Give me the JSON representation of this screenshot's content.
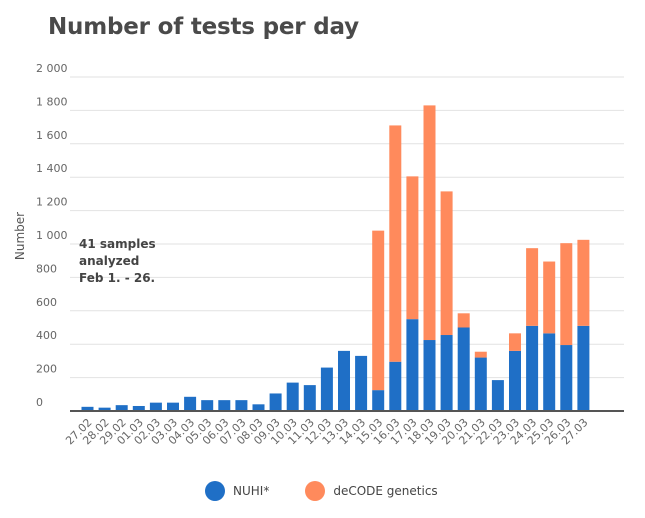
{
  "chart_data": {
    "type": "bar",
    "stacked": true,
    "title": "Number of tests per day",
    "ylabel": "Number",
    "ylim": [
      0,
      2000
    ],
    "yticks": [
      0,
      200,
      400,
      600,
      800,
      1000,
      1200,
      1400,
      1600,
      1800,
      2000
    ],
    "ytick_labels": [
      "0",
      "200",
      "400",
      "600",
      "800",
      "1 000",
      "1 200",
      "1 400",
      "1 600",
      "1 800",
      "2 000"
    ],
    "grid": true,
    "legend_position": "bottom",
    "annotation": [
      "41 samples",
      "analyzed",
      "Feb 1. - 26."
    ],
    "categories": [
      "27.02",
      "28.02",
      "29.02",
      "01.03",
      "02.03",
      "03.03",
      "04.03",
      "05.03",
      "06.03",
      "07.03",
      "08.03",
      "09.03",
      "10.03",
      "11.03",
      "12.03",
      "13.03",
      "14.03",
      "15.03",
      "16.03",
      "17.03",
      "18.03",
      "19.03",
      "20.03",
      "21.03",
      "22.03",
      "23.03",
      "24.03",
      "25.03",
      "26.03",
      "27.03"
    ],
    "series": [
      {
        "name": "NUHI*",
        "color": "#1f6fc6",
        "values": [
          25,
          20,
          35,
          30,
          50,
          50,
          85,
          65,
          65,
          65,
          40,
          105,
          170,
          155,
          260,
          360,
          330,
          125,
          295,
          550,
          425,
          455,
          500,
          320,
          185,
          360,
          510,
          465,
          395,
          510
        ]
      },
      {
        "name": "deCODE genetics",
        "color": "#ff8a5c",
        "values": [
          0,
          0,
          0,
          0,
          0,
          0,
          0,
          0,
          0,
          0,
          0,
          0,
          0,
          0,
          0,
          0,
          0,
          955,
          1415,
          855,
          1405,
          860,
          85,
          35,
          0,
          105,
          465,
          430,
          610,
          515
        ]
      }
    ]
  }
}
